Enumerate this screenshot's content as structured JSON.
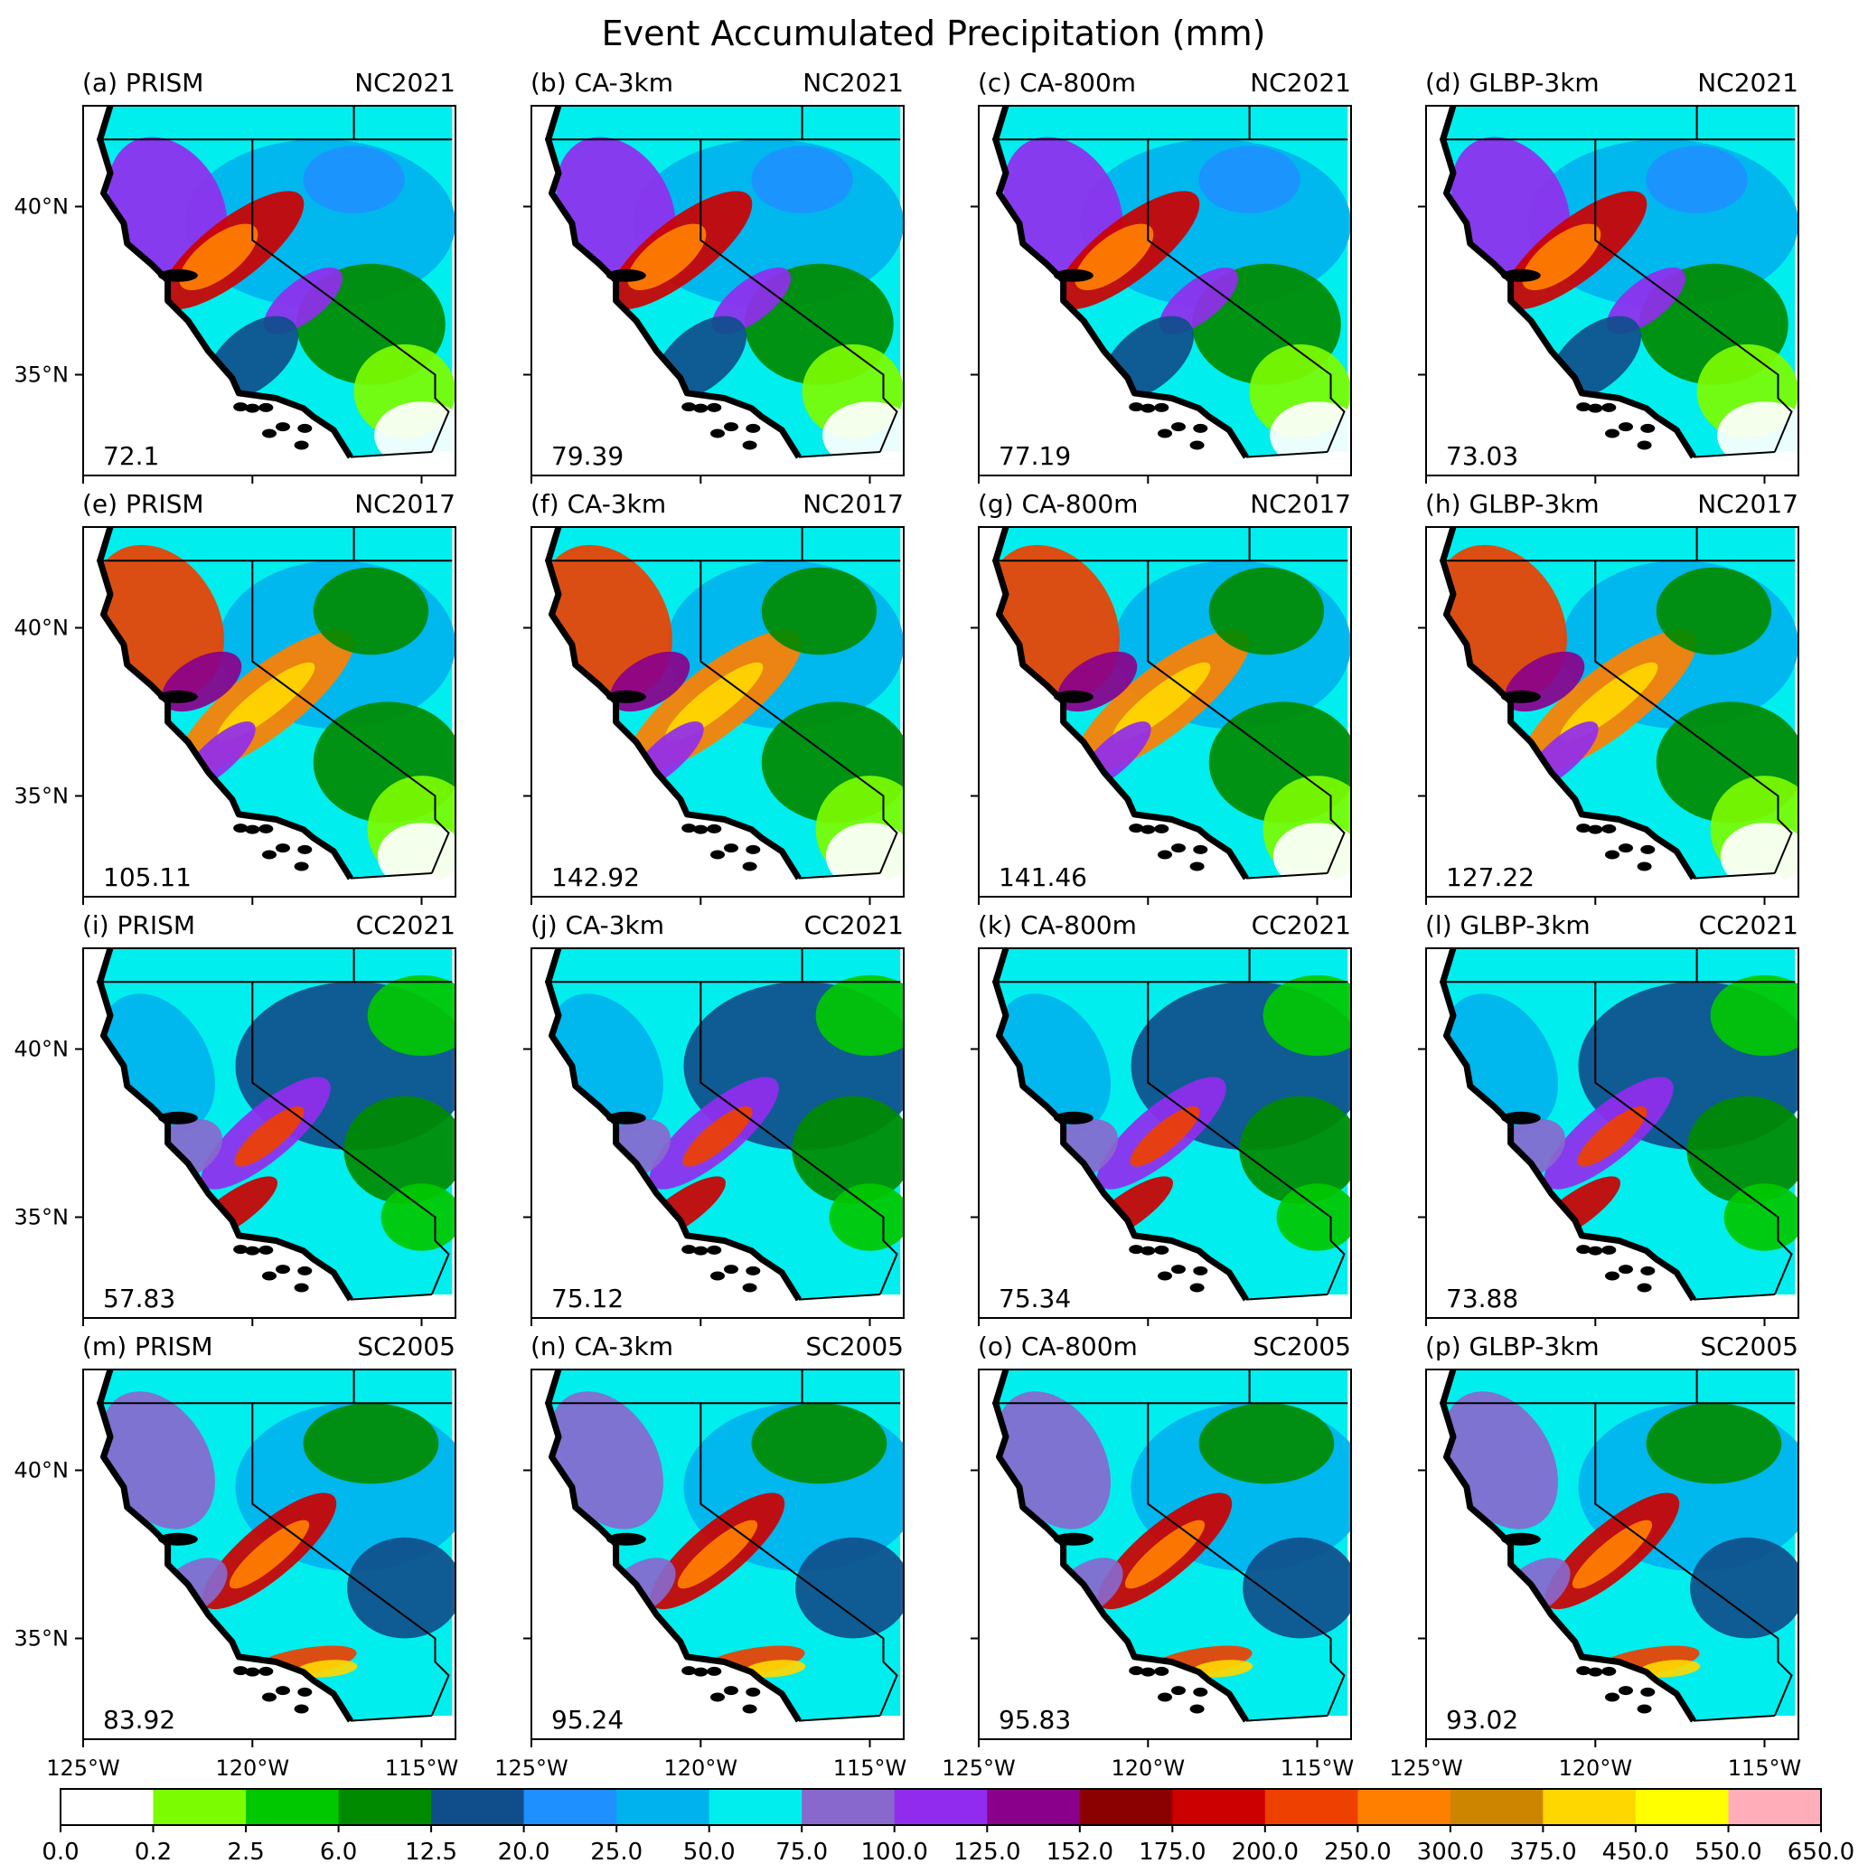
{
  "chart_data": {
    "type": "heatmap",
    "title": "Event Accumulated Precipitation (mm)",
    "region": "California / Nevada",
    "x_ticks": [
      "125°W",
      "120°W",
      "115°W"
    ],
    "y_ticks": [
      "40°N",
      "35°N"
    ],
    "lon_range": [
      -125,
      -114
    ],
    "lat_range": [
      32,
      43
    ],
    "colorbar": {
      "levels": [
        "0.0",
        "0.2",
        "2.5",
        "6.0",
        "12.5",
        "20.0",
        "25.0",
        "50.0",
        "75.0",
        "100.0",
        "125.0",
        "152.0",
        "175.0",
        "200.0",
        "250.0",
        "300.0",
        "375.0",
        "450.0",
        "550.0",
        "650.0"
      ],
      "colors": [
        "#ffffff",
        "#7cfc00",
        "#00c800",
        "#008a00",
        "#104e8b",
        "#1e90ff",
        "#00b2ee",
        "#00eeee",
        "#8968cd",
        "#912cee",
        "#8b008b",
        "#8b0000",
        "#cd0000",
        "#ee4000",
        "#ff7f00",
        "#cd8500",
        "#ffd700",
        "#ffff00",
        "#ffaeb9"
      ]
    },
    "panels": [
      {
        "label": "(a) PRISM",
        "event": "NC2021",
        "mean": "72.1"
      },
      {
        "label": "(b) CA-3km",
        "event": "NC2021",
        "mean": "79.39"
      },
      {
        "label": "(c) CA-800m",
        "event": "NC2021",
        "mean": "77.19"
      },
      {
        "label": "(d) GLBP-3km",
        "event": "NC2021",
        "mean": "73.03"
      },
      {
        "label": "(e) PRISM",
        "event": "NC2017",
        "mean": "105.11"
      },
      {
        "label": "(f) CA-3km",
        "event": "NC2017",
        "mean": "142.92"
      },
      {
        "label": "(g) CA-800m",
        "event": "NC2017",
        "mean": "141.46"
      },
      {
        "label": "(h) GLBP-3km",
        "event": "NC2017",
        "mean": "127.22"
      },
      {
        "label": "(i) PRISM",
        "event": "CC2021",
        "mean": "57.83"
      },
      {
        "label": "(j) CA-3km",
        "event": "CC2021",
        "mean": "75.12"
      },
      {
        "label": "(k) CA-800m",
        "event": "CC2021",
        "mean": "75.34"
      },
      {
        "label": "(l) GLBP-3km",
        "event": "CC2021",
        "mean": "73.88"
      },
      {
        "label": "(m) PRISM",
        "event": "SC2005",
        "mean": "83.92"
      },
      {
        "label": "(n) CA-3km",
        "event": "SC2005",
        "mean": "95.24"
      },
      {
        "label": "(o) CA-800m",
        "event": "SC2005",
        "mean": "95.83"
      },
      {
        "label": "(p) GLBP-3km",
        "event": "SC2005",
        "mean": "93.02"
      }
    ]
  }
}
